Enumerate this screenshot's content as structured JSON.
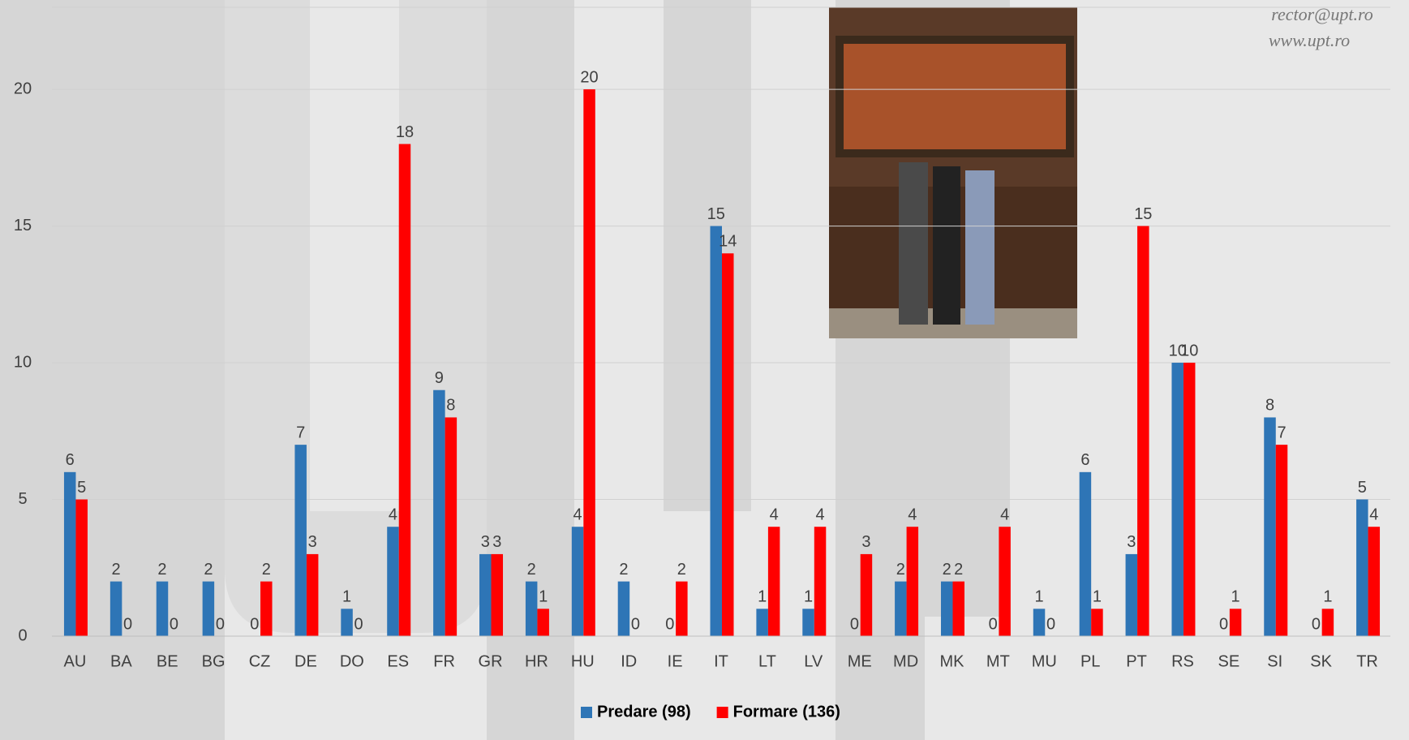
{
  "chart_data": {
    "type": "bar",
    "categories": [
      "AU",
      "BA",
      "BE",
      "BG",
      "CZ",
      "DE",
      "DO",
      "ES",
      "FR",
      "GR",
      "HR",
      "HU",
      "ID",
      "IE",
      "IT",
      "LT",
      "LV",
      "ME",
      "MD",
      "MK",
      "MT",
      "MU",
      "PL",
      "PT",
      "RS",
      "SE",
      "SI",
      "SK",
      "TR"
    ],
    "series": [
      {
        "name": "Predare (98)",
        "color": "#2e75b6",
        "values": [
          6,
          2,
          2,
          2,
          0,
          7,
          1,
          4,
          9,
          3,
          2,
          4,
          2,
          0,
          15,
          1,
          1,
          0,
          2,
          2,
          0,
          1,
          6,
          3,
          10,
          0,
          8,
          0,
          5
        ]
      },
      {
        "name": "Formare (136)",
        "color": "#ff0000",
        "values": [
          5,
          0,
          0,
          0,
          2,
          3,
          0,
          18,
          8,
          3,
          1,
          20,
          0,
          2,
          14,
          4,
          4,
          3,
          4,
          2,
          4,
          0,
          1,
          15,
          10,
          1,
          7,
          1,
          4
        ]
      }
    ],
    "ylim": [
      0,
      23
    ],
    "yticks": [
      0,
      5,
      10,
      15,
      20
    ],
    "grid": true,
    "legend": "bottom",
    "contact": [
      "rector@upt.ro",
      "www.upt.ro"
    ]
  }
}
